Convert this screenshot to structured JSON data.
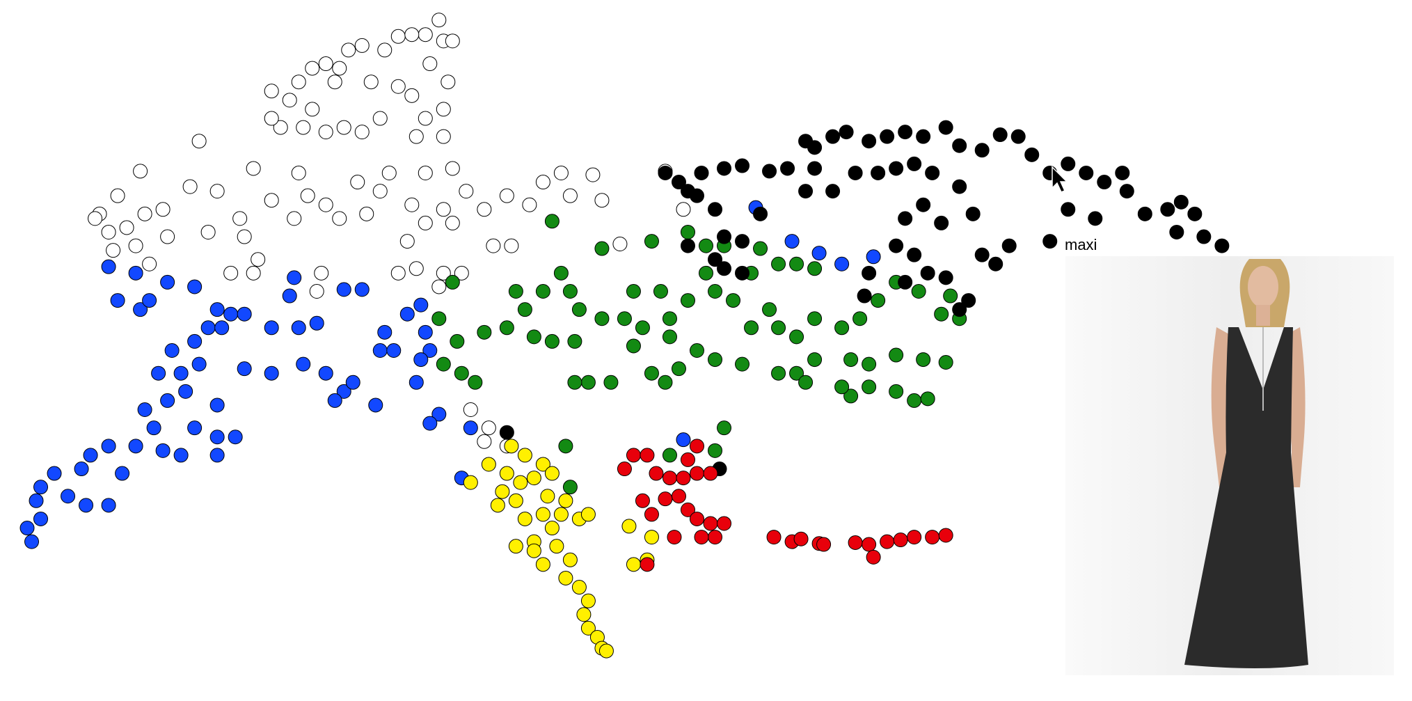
{
  "chart_data": {
    "type": "scatter",
    "xlim": [
      0,
      1560
    ],
    "ylim": [
      770,
      0
    ],
    "annotation": "maxi",
    "series": [
      {
        "color": "#ffffff",
        "x": [
          485,
          490,
          500,
          470,
          440,
          455,
          425,
          400,
          385,
          360,
          345,
          330,
          300,
          320,
          345,
          370,
          375,
          410,
          440,
          455,
          495,
          475,
          490,
          470,
          460,
          490,
          420,
          400,
          380,
          360,
          335,
          310,
          300,
          220,
          155,
          130,
          110,
          120,
          140,
          160,
          180,
          185,
          150,
          125,
          105,
          165,
          210,
          240,
          265,
          270,
          230,
          285,
          280,
          255,
          280,
          330,
          340,
          300,
          325,
          360,
          395,
          420,
          405,
          375,
          430,
          470,
          500,
          515,
          490,
          455,
          470,
          535,
          560,
          585,
          600,
          620,
          630,
          655,
          665,
          450,
          500,
          545,
          565,
          440,
          460,
          490,
          510,
          485,
          355,
          350,
          520,
          540,
          560,
          535,
          685,
          735,
          755
        ],
        "y": [
          22,
          45,
          45,
          38,
          40,
          38,
          55,
          50,
          55,
          70,
          75,
          90,
          100,
          110,
          120,
          90,
          75,
          90,
          95,
          105,
          90,
          70,
          120,
          130,
          150,
          150,
          130,
          145,
          140,
          145,
          140,
          140,
          130,
          155,
          188,
          215,
          235,
          255,
          250,
          235,
          230,
          260,
          270,
          275,
          240,
          290,
          205,
          210,
          240,
          260,
          255,
          285,
          300,
          300,
          185,
          190,
          215,
          220,
          240,
          225,
          200,
          210,
          235,
          240,
          190,
          190,
          185,
          210,
          230,
          225,
          245,
          230,
          215,
          225,
          200,
          190,
          215,
          192,
          220,
          265,
          245,
          270,
          270,
          300,
          295,
          300,
          300,
          315,
          300,
          320,
          450,
          470,
          490,
          485,
          268,
          188,
          230
        ]
      },
      {
        "color": "#1248ff",
        "x": [
          120,
          150,
          130,
          155,
          165,
          185,
          215,
          240,
          255,
          270,
          230,
          245,
          215,
          190,
          175,
          185,
          160,
          170,
          150,
          120,
          100,
          90,
          60,
          45,
          40,
          45,
          30,
          35,
          75,
          95,
          120,
          135,
          180,
          200,
          215,
          240,
          260,
          240,
          205,
          240,
          220,
          200,
          270,
          300,
          300,
          325,
          320,
          330,
          350,
          335,
          360,
          380,
          370,
          415,
          390,
          425,
          420,
          435,
          450,
          465,
          470,
          475,
          465,
          460,
          485,
          475,
          510,
          520,
          380,
          400,
          755,
          835,
          875,
          905,
          930,
          965
        ],
        "y": [
          293,
          300,
          330,
          340,
          330,
          310,
          315,
          340,
          345,
          345,
          360,
          360,
          375,
          385,
          410,
          440,
          450,
          470,
          490,
          490,
          500,
          515,
          520,
          535,
          550,
          570,
          580,
          595,
          545,
          555,
          555,
          520,
          495,
          500,
          470,
          480,
          480,
          500,
          430,
          445,
          400,
          410,
          405,
          410,
          360,
          305,
          325,
          360,
          355,
          400,
          410,
          430,
          440,
          445,
          420,
          365,
          385,
          385,
          345,
          335,
          365,
          385,
          395,
          420,
          455,
          465,
          525,
          470,
          318,
          318,
          483,
          228,
          265,
          278,
          290,
          282
        ]
      },
      {
        "color": "#138a13",
        "x": [
          610,
          665,
          720,
          760,
          780,
          800,
          840,
          860,
          880,
          900,
          620,
          630,
          600,
          580,
          560,
          535,
          505,
          485,
          500,
          570,
          640,
          665,
          690,
          700,
          730,
          710,
          740,
          760,
          780,
          790,
          810,
          830,
          850,
          830,
          860,
          880,
          900,
          930,
          950,
          970,
          990,
          1015,
          1050,
          1040,
          1060,
          1020,
          1045,
          990,
          960,
          940,
          900,
          880,
          860,
          820,
          790,
          770,
          750,
          720,
          735,
          700,
          740,
          635,
          650,
          635,
          675,
          610,
          490,
          510,
          525,
          940,
          960,
          990,
          1010,
          1025,
          890,
          930,
          800,
          790,
          740,
          625,
          630,
          590
        ],
        "y": [
          243,
          273,
          265,
          255,
          270,
          270,
          273,
          290,
          290,
          295,
          300,
          320,
          320,
          340,
          360,
          365,
          375,
          350,
          310,
          320,
          340,
          350,
          350,
          320,
          320,
          360,
          350,
          330,
          300,
          320,
          330,
          300,
          340,
          360,
          360,
          370,
          350,
          360,
          350,
          330,
          310,
          320,
          325,
          345,
          350,
          395,
          398,
          390,
          400,
          395,
          395,
          410,
          410,
          400,
          395,
          385,
          405,
          410,
          420,
          380,
          370,
          375,
          420,
          420,
          420,
          375,
          400,
          410,
          420,
          435,
          425,
          430,
          440,
          438,
          420,
          425,
          470,
          495,
          500,
          490,
          535,
          370
        ]
      },
      {
        "color": "#000000",
        "x": [
          735,
          750,
          760,
          770,
          790,
          800,
          820,
          790,
          800,
          820,
          775,
          800,
          820,
          850,
          870,
          890,
          900,
          920,
          935,
          960,
          980,
          1000,
          1020,
          1045,
          1060,
          1085,
          1105,
          1125,
          1140,
          1160,
          1180,
          1200,
          1220,
          1245,
          1240,
          1265,
          1290,
          1305,
          1320,
          1300,
          1330,
          1350,
          1180,
          1210,
          1160,
          1115,
          1100,
          1085,
          1075,
          1060,
          1030,
          1010,
          990,
          970,
          945,
          920,
          900,
          890,
          1020,
          1040,
          1000,
          990,
          1010,
          1025,
          1045,
          1000,
          960,
          1070,
          1060,
          955,
          840,
          760,
          560,
          795
        ],
        "y": [
          190,
          200,
          210,
          215,
          230,
          260,
          265,
          285,
          295,
          300,
          190,
          185,
          182,
          188,
          185,
          155,
          162,
          150,
          145,
          155,
          150,
          145,
          150,
          140,
          160,
          165,
          148,
          150,
          170,
          190,
          180,
          190,
          200,
          210,
          190,
          235,
          230,
          222,
          235,
          255,
          260,
          270,
          230,
          240,
          265,
          270,
          290,
          280,
          235,
          205,
          190,
          180,
          185,
          190,
          190,
          210,
          185,
          210,
          225,
          245,
          240,
          270,
          280,
          300,
          305,
          310,
          300,
          330,
          340,
          325,
          235,
          270,
          475,
          515
        ]
      },
      {
        "color": "#fff000",
        "x": [
          565,
          580,
          600,
          610,
          590,
          560,
          540,
          520,
          555,
          570,
          550,
          580,
          600,
          620,
          640,
          650,
          610,
          590,
          570,
          590,
          615,
          630,
          600,
          625,
          640,
          650,
          645,
          650,
          660,
          665,
          670,
          695,
          720,
          700,
          715,
          605,
          625,
          575
        ],
        "y": [
          490,
          500,
          510,
          520,
          525,
          520,
          510,
          530,
          540,
          550,
          555,
          570,
          565,
          565,
          570,
          565,
          580,
          595,
          600,
          605,
          600,
          615,
          620,
          635,
          645,
          660,
          675,
          690,
          700,
          712,
          715,
          578,
          590,
          620,
          615,
          545,
          550,
          530
        ]
      },
      {
        "color": "#e8000b",
        "x": [
          690,
          700,
          715,
          725,
          740,
          755,
          770,
          785,
          770,
          760,
          710,
          720,
          735,
          750,
          760,
          770,
          785,
          800,
          790,
          775,
          745,
          715,
          855,
          875,
          885,
          905,
          910,
          945,
          960,
          965,
          980,
          995,
          1010,
          1030,
          1045
        ],
        "y": [
          515,
          500,
          500,
          520,
          525,
          525,
          520,
          520,
          490,
          505,
          550,
          565,
          548,
          545,
          560,
          570,
          575,
          575,
          590,
          590,
          590,
          620,
          590,
          595,
          592,
          597,
          598,
          596,
          598,
          612,
          595,
          593,
          590,
          590,
          588
        ]
      }
    ]
  }
}
